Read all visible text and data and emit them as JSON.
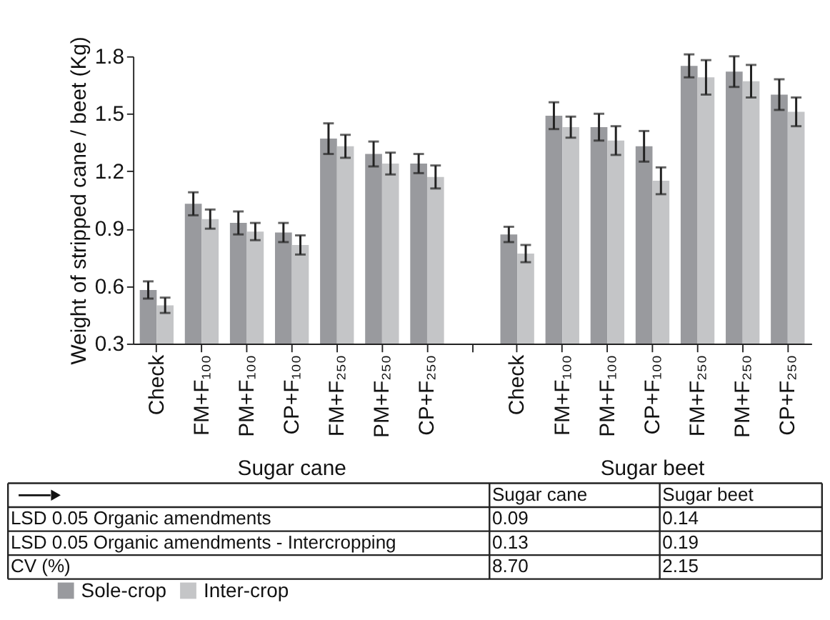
{
  "chart_data": {
    "type": "bar",
    "ylabel": "Weight of stripped cane / beet (Kg)",
    "categories": [
      "Check",
      "FM+F₁₀₀",
      "PM+F₁₀₀",
      "CP+F₁₀₀",
      "FM+F₂₅₀",
      "PM+F₂₅₀",
      "CP+F₂₅₀",
      null,
      "Check",
      "FM+F₁₀₀",
      "PM+F₁₀₀",
      "CP+F₁₀₀",
      "FM+F₂₅₀",
      "PM+F₂₅₀",
      "CP+F₂₅₀"
    ],
    "series": [
      {
        "name": "Sole-crop",
        "color": "#999a9e",
        "values": [
          0.58,
          1.03,
          0.93,
          0.88,
          1.37,
          1.29,
          1.24,
          null,
          0.87,
          1.49,
          1.43,
          1.33,
          1.75,
          1.72,
          1.6
        ],
        "errors": [
          0.045,
          0.06,
          0.06,
          0.05,
          0.08,
          0.065,
          0.05,
          null,
          0.04,
          0.07,
          0.07,
          0.08,
          0.06,
          0.08,
          0.08
        ]
      },
      {
        "name": "Inter-crop",
        "color": "#c4c5c7",
        "values": [
          0.5,
          0.95,
          0.885,
          0.815,
          1.33,
          1.24,
          1.17,
          null,
          0.77,
          1.43,
          1.36,
          1.15,
          1.69,
          1.67,
          1.51
        ],
        "errors": [
          0.04,
          0.05,
          0.045,
          0.05,
          0.06,
          0.057,
          0.06,
          null,
          0.045,
          0.055,
          0.075,
          0.07,
          0.09,
          0.085,
          0.075
        ]
      }
    ],
    "ylim": [
      0.3,
      1.8
    ],
    "yticks": [
      0.3,
      0.6,
      0.9,
      1.2,
      1.5,
      1.8
    ],
    "grid": false,
    "legend": "bottom",
    "annotations": [
      "Sugar cane",
      "Sugar beet",
      "Sugar cane",
      "Sugar beet",
      "LSD 0.05 Organic amendments",
      "0.09",
      "0.14",
      "LSD 0.05 Organic amendments - Intercropping",
      "0.13",
      "0.19",
      "CV (%)",
      "8.70",
      "2.15"
    ]
  }
}
